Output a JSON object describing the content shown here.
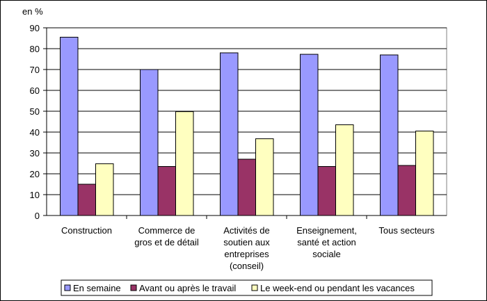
{
  "chart_data": {
    "type": "bar",
    "unit_label": "en %",
    "categories": [
      [
        "Construction"
      ],
      [
        "Commerce de",
        "gros et de détail"
      ],
      [
        "Activités de",
        "soutien aux",
        "entreprises",
        "(conseil)"
      ],
      [
        "Enseignement,",
        "santé et action",
        "sociale"
      ],
      [
        "Tous secteurs"
      ]
    ],
    "series": [
      {
        "name": "En semaine",
        "color": "#9999ff",
        "values": [
          85.5,
          70,
          78,
          77.3,
          77
        ]
      },
      {
        "name": "Avant ou après le travail",
        "color": "#993366",
        "values": [
          15,
          23.5,
          27,
          23.5,
          24
        ]
      },
      {
        "name": "Le week-end ou pendant les vacances",
        "color": "#ffffc0",
        "values": [
          24.8,
          49.8,
          36.8,
          43.5,
          40.5
        ]
      }
    ],
    "ylim": [
      0,
      90
    ],
    "yticks": [
      0,
      10,
      20,
      30,
      40,
      50,
      60,
      70,
      80,
      90
    ],
    "grid": true,
    "legend_position": "bottom"
  }
}
